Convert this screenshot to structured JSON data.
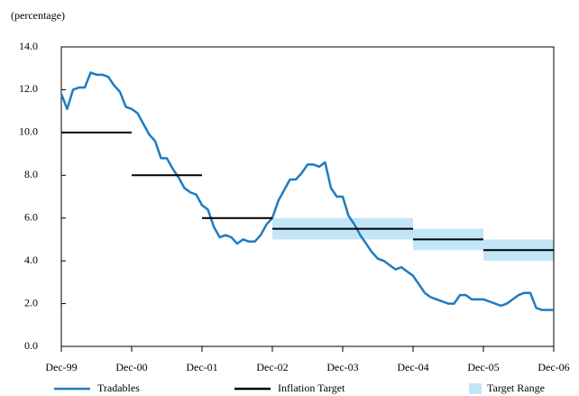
{
  "chart_data": {
    "type": "line",
    "y_label": "(percentage)",
    "x": [
      0,
      1,
      2,
      3,
      4,
      5,
      6,
      7,
      8,
      9,
      10,
      11,
      12,
      13,
      14,
      15,
      16,
      17,
      18,
      19,
      20,
      21,
      22,
      23,
      24,
      25,
      26,
      27,
      28,
      29,
      30,
      31,
      32,
      33,
      34,
      35,
      36,
      37,
      38,
      39,
      40,
      41,
      42,
      43,
      44,
      45,
      46,
      47,
      48,
      49,
      50,
      51,
      52,
      53,
      54,
      55,
      56,
      57,
      58,
      59,
      60,
      61,
      62,
      63,
      64,
      65,
      66,
      67,
      68,
      69,
      70,
      71,
      72,
      73,
      74,
      75,
      76,
      77,
      78,
      79,
      80,
      81,
      82,
      83,
      84
    ],
    "xlim": [
      0,
      84
    ],
    "xticks": [
      {
        "value": 0,
        "label": "Dec-99"
      },
      {
        "value": 12,
        "label": "Dec-00"
      },
      {
        "value": 24,
        "label": "Dec-01"
      },
      {
        "value": 36,
        "label": "Dec-02"
      },
      {
        "value": 48,
        "label": "Dec-03"
      },
      {
        "value": 60,
        "label": "Dec-04"
      },
      {
        "value": 72,
        "label": "Dec-05"
      },
      {
        "value": 84,
        "label": "Dec-06"
      }
    ],
    "ylim": [
      0,
      14
    ],
    "yticks": [
      {
        "value": 0,
        "label": "0.0"
      },
      {
        "value": 2,
        "label": "2.0"
      },
      {
        "value": 4,
        "label": "4.0"
      },
      {
        "value": 6,
        "label": "6.0"
      },
      {
        "value": 8,
        "label": "8.0"
      },
      {
        "value": 10,
        "label": "10.0"
      },
      {
        "value": 12,
        "label": "12.0"
      },
      {
        "value": 14,
        "label": "14.0"
      }
    ],
    "series": [
      {
        "name": "Tradables",
        "color": "#1f7bc1",
        "values": [
          11.8,
          11.1,
          12.0,
          12.1,
          12.1,
          12.8,
          12.7,
          12.7,
          12.6,
          12.2,
          11.9,
          11.2,
          11.1,
          10.9,
          10.4,
          9.9,
          9.6,
          8.8,
          8.8,
          8.3,
          7.9,
          7.4,
          7.2,
          7.1,
          6.6,
          6.4,
          5.6,
          5.1,
          5.2,
          5.1,
          4.8,
          5.0,
          4.9,
          4.9,
          5.2,
          5.7,
          6.0,
          6.8,
          7.3,
          7.8,
          7.8,
          8.1,
          8.5,
          8.5,
          8.4,
          8.6,
          7.4,
          7.0,
          7.0,
          6.1,
          5.7,
          5.2,
          4.8,
          4.4,
          4.1,
          4.0,
          3.8,
          3.6,
          3.7,
          3.5,
          3.3,
          2.9,
          2.5,
          2.3,
          2.2,
          2.1,
          2.0,
          2.0,
          2.4,
          2.4,
          2.2,
          2.2,
          2.2,
          2.1,
          2.0,
          1.9,
          2.0,
          2.2,
          2.4,
          2.5,
          2.5,
          1.8,
          1.7,
          1.7,
          1.7
        ]
      },
      {
        "name": "Inflation Target",
        "color": "#000000",
        "segments": [
          {
            "start": 0,
            "end": 12,
            "value": 10
          },
          {
            "start": 12,
            "end": 24,
            "value": 8
          },
          {
            "start": 24,
            "end": 36,
            "value": 6
          },
          {
            "start": 36,
            "end": 60,
            "value": 5.5
          },
          {
            "start": 60,
            "end": 72,
            "value": 5
          },
          {
            "start": 72,
            "end": 84,
            "value": 4.5
          }
        ]
      },
      {
        "name": "Target Range",
        "color": "#c2e6f7",
        "bands": [
          {
            "start": 36,
            "end": 60,
            "low": 5,
            "high": 6
          },
          {
            "start": 60,
            "end": 72,
            "low": 4.5,
            "high": 5.5
          },
          {
            "start": 72,
            "end": 84,
            "low": 4,
            "high": 5
          }
        ]
      }
    ]
  }
}
